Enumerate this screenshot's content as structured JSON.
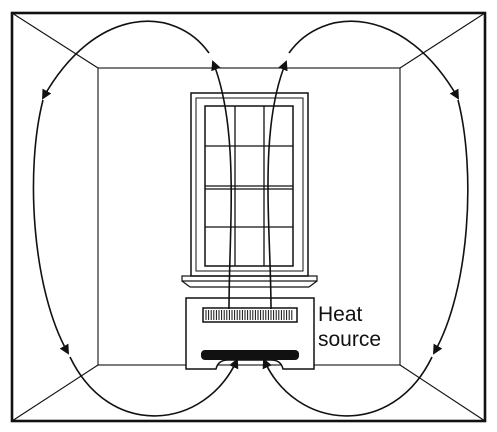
{
  "labels": {
    "line1": "Heat",
    "line2": "source"
  },
  "colors": {
    "ink": "#111111",
    "background": "#ffffff"
  }
}
